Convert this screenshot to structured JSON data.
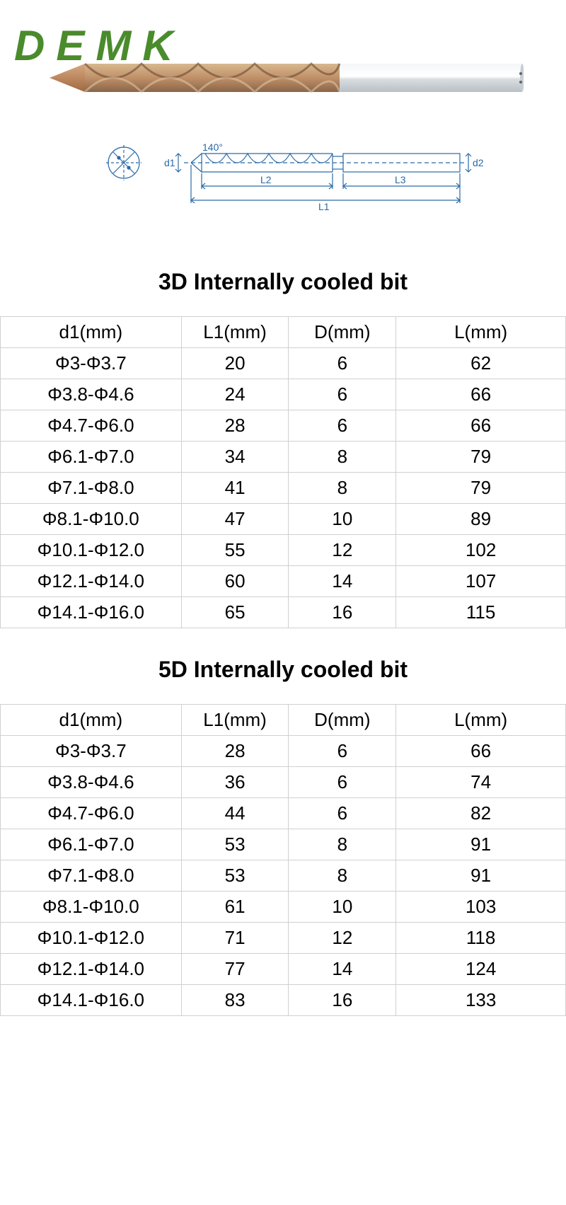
{
  "logo_text": "DEMK",
  "logo_color": "#4a8b2c",
  "drill_photo": {
    "tip_color": "#c08050",
    "flute_color": "#b5936e",
    "shank_color": "#d8dde0",
    "highlight_color": "#f0f0f0"
  },
  "diagram": {
    "line_color": "#2a6aa8",
    "labels": {
      "d1": "d1",
      "angle": "140°",
      "d2": "d2",
      "L1": "L1",
      "L2": "L2",
      "L3": "L3"
    },
    "label_fontsize": 14
  },
  "table_style": {
    "border_color": "#d0d0d0",
    "font_size": 26,
    "header_weight": 400,
    "text_align": "center",
    "columns": [
      {
        "key": "d1",
        "width_pct": 32
      },
      {
        "key": "L1",
        "width_pct": 19
      },
      {
        "key": "D",
        "width_pct": 19
      },
      {
        "key": "L",
        "width_pct": 30
      }
    ]
  },
  "sections": [
    {
      "title": "3D Internally cooled bit",
      "title_fontsize": 32,
      "columns": [
        "d1(mm)",
        "L1(mm)",
        "D(mm)",
        "L(mm)"
      ],
      "rows": [
        [
          "Φ3-Φ3.7",
          "20",
          "6",
          "62"
        ],
        [
          "Φ3.8-Φ4.6",
          "24",
          "6",
          "66"
        ],
        [
          "Φ4.7-Φ6.0",
          "28",
          "6",
          "66"
        ],
        [
          "Φ6.1-Φ7.0",
          "34",
          "8",
          "79"
        ],
        [
          "Φ7.1-Φ8.0",
          "41",
          "8",
          "79"
        ],
        [
          "Φ8.1-Φ10.0",
          "47",
          "10",
          "89"
        ],
        [
          "Φ10.1-Φ12.0",
          "55",
          "12",
          "102"
        ],
        [
          "Φ12.1-Φ14.0",
          "60",
          "14",
          "107"
        ],
        [
          "Φ14.1-Φ16.0",
          "65",
          "16",
          "115"
        ]
      ]
    },
    {
      "title": "5D Internally cooled bit",
      "title_fontsize": 32,
      "columns": [
        "d1(mm)",
        "L1(mm)",
        "D(mm)",
        "L(mm)"
      ],
      "rows": [
        [
          "Φ3-Φ3.7",
          "28",
          "6",
          "66"
        ],
        [
          "Φ3.8-Φ4.6",
          "36",
          "6",
          "74"
        ],
        [
          "Φ4.7-Φ6.0",
          "44",
          "6",
          "82"
        ],
        [
          "Φ6.1-Φ7.0",
          "53",
          "8",
          "91"
        ],
        [
          "Φ7.1-Φ8.0",
          "53",
          "8",
          "91"
        ],
        [
          "Φ8.1-Φ10.0",
          "61",
          "10",
          "103"
        ],
        [
          "Φ10.1-Φ12.0",
          "71",
          "12",
          "118"
        ],
        [
          "Φ12.1-Φ14.0",
          "77",
          "14",
          "124"
        ],
        [
          "Φ14.1-Φ16.0",
          "83",
          "16",
          "133"
        ]
      ]
    }
  ]
}
